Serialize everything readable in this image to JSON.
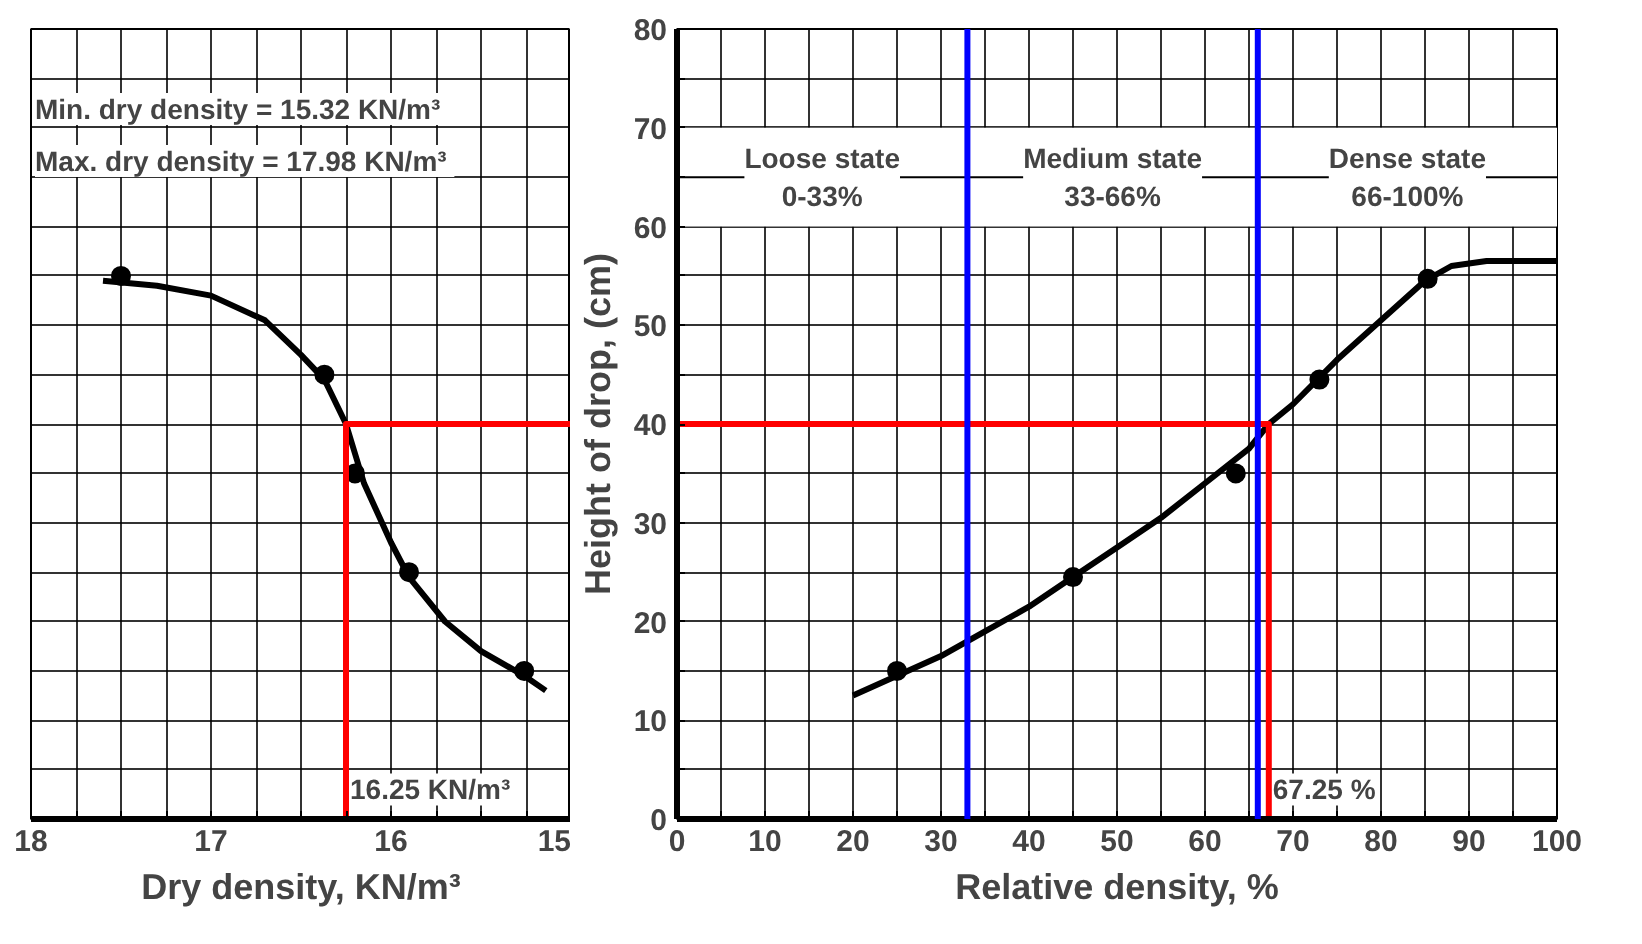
{
  "chart_data": [
    {
      "type": "line",
      "xlabel": "Dry density, KN/m³",
      "xlim": [
        18,
        15
      ],
      "xticks": [
        18,
        {
          "value": 17.75,
          "label": null
        },
        {
          "value": 17.5,
          "label": null
        },
        {
          "value": 17.25,
          "label": null
        },
        17,
        {
          "value": 16.75,
          "label": null
        },
        {
          "value": 16.5,
          "label": null
        },
        {
          "value": 16.25,
          "label": null
        },
        16,
        {
          "value": 15.75,
          "label": null
        },
        {
          "value": 15.5,
          "label": null
        },
        {
          "value": 15.25,
          "label": null
        },
        15
      ],
      "ylim": [
        0,
        80
      ],
      "yticks": [
        0,
        {
          "value": 5,
          "label": null
        },
        10,
        {
          "value": 15,
          "label": null
        },
        20,
        {
          "value": 25,
          "label": null
        },
        30,
        {
          "value": 35,
          "label": null
        },
        40,
        {
          "value": 45,
          "label": null
        },
        50,
        {
          "value": 55,
          "label": null
        },
        60,
        {
          "value": 65,
          "label": null
        },
        70,
        {
          "value": 75,
          "label": null
        },
        80
      ],
      "tick_labels": "x",
      "grid": true,
      "series": [
        {
          "color": "#000000",
          "marker": "none",
          "x": [
            17.6,
            17.3,
            17.0,
            16.7,
            16.5,
            16.37,
            16.25,
            16.15,
            16.0,
            15.9,
            15.7,
            15.5,
            15.26,
            15.14
          ],
          "values": [
            54.5,
            54,
            53,
            50.5,
            47,
            44.5,
            40,
            34,
            28,
            24.5,
            20,
            17,
            14.5,
            13
          ]
        },
        {
          "type": "scatter",
          "color": "#000000",
          "marker": "circle",
          "x": [
            17.5,
            16.37,
            16.2,
            15.9,
            15.26
          ],
          "values": [
            55,
            45,
            35,
            25,
            15
          ]
        },
        {
          "color": "#ff0000",
          "marker": "none",
          "x": [
            16.25,
            16.25,
            15
          ],
          "values": [
            0,
            40,
            40
          ]
        }
      ],
      "annotations": [
        "Min. dry density =  15.32 KN/m³",
        "Max. dry density =  17.98 KN/m³",
        {
          "text": "16.25 KN/m³",
          "x": 16.25,
          "y": 3
        }
      ]
    },
    {
      "type": "line",
      "xlabel": "Relative density, %",
      "ylabel": "Height of drop, (cm)",
      "xlim": [
        0,
        100
      ],
      "xticks": [
        0,
        {
          "value": 5,
          "label": null
        },
        10,
        {
          "value": 15,
          "label": null
        },
        20,
        {
          "value": 25,
          "label": null
        },
        30,
        {
          "value": 35,
          "label": null
        },
        40,
        {
          "value": 45,
          "label": null
        },
        50,
        {
          "value": 55,
          "label": null
        },
        60,
        {
          "value": 65,
          "label": null
        },
        70,
        {
          "value": 75,
          "label": null
        },
        80,
        {
          "value": 85,
          "label": null
        },
        90,
        {
          "value": 95,
          "label": null
        },
        100
      ],
      "ylim": [
        0,
        80
      ],
      "yticks": [
        0,
        {
          "value": 5,
          "label": null
        },
        10,
        {
          "value": 15,
          "label": null
        },
        20,
        {
          "value": 25,
          "label": null
        },
        30,
        {
          "value": 35,
          "label": null
        },
        40,
        {
          "value": 45,
          "label": null
        },
        50,
        {
          "value": 55,
          "label": null
        },
        60,
        {
          "value": 65,
          "label": null
        },
        70,
        {
          "value": 75,
          "label": null
        },
        80
      ],
      "grid": true,
      "series": [
        {
          "color": "#000000",
          "marker": "none",
          "x": [
            20,
            25,
            30,
            35,
            40,
            45,
            50,
            55,
            60,
            65,
            67.25,
            70,
            75,
            80,
            85,
            88,
            92,
            100
          ],
          "values": [
            12.5,
            14.5,
            16.5,
            19,
            21.5,
            24.5,
            27.5,
            30.5,
            34,
            37.5,
            40,
            42,
            46.5,
            50.5,
            54.5,
            56,
            56.5,
            56.5
          ]
        },
        {
          "type": "scatter",
          "color": "#000000",
          "marker": "circle",
          "x": [
            25,
            45,
            63.5,
            73,
            85.3
          ],
          "values": [
            15,
            24.5,
            35,
            44.5,
            54.7
          ]
        },
        {
          "color": "#ff0000",
          "marker": "none",
          "x": [
            67.25,
            67.25,
            0
          ],
          "values": [
            0,
            40,
            40
          ]
        }
      ],
      "ref_lines": [
        {
          "axis": "x",
          "value": 33,
          "color": "#0000ff"
        },
        {
          "axis": "x",
          "value": 66,
          "color": "#0000ff"
        }
      ],
      "bands": [
        {
          "axis": "x",
          "from": 0,
          "to": 33,
          "label": "Loose state\n0-33%",
          "color": "#ffffff"
        },
        {
          "axis": "x",
          "from": 33,
          "to": 66,
          "label": "Medium state\n33-66%",
          "color": "#ffffff"
        },
        {
          "axis": "x",
          "from": 66,
          "to": 100,
          "label": "Dense state\n66-100%",
          "color": "#ffffff"
        }
      ],
      "annotations": [
        {
          "text": "67.25 %",
          "x": 67.25,
          "y": 3
        }
      ]
    }
  ]
}
